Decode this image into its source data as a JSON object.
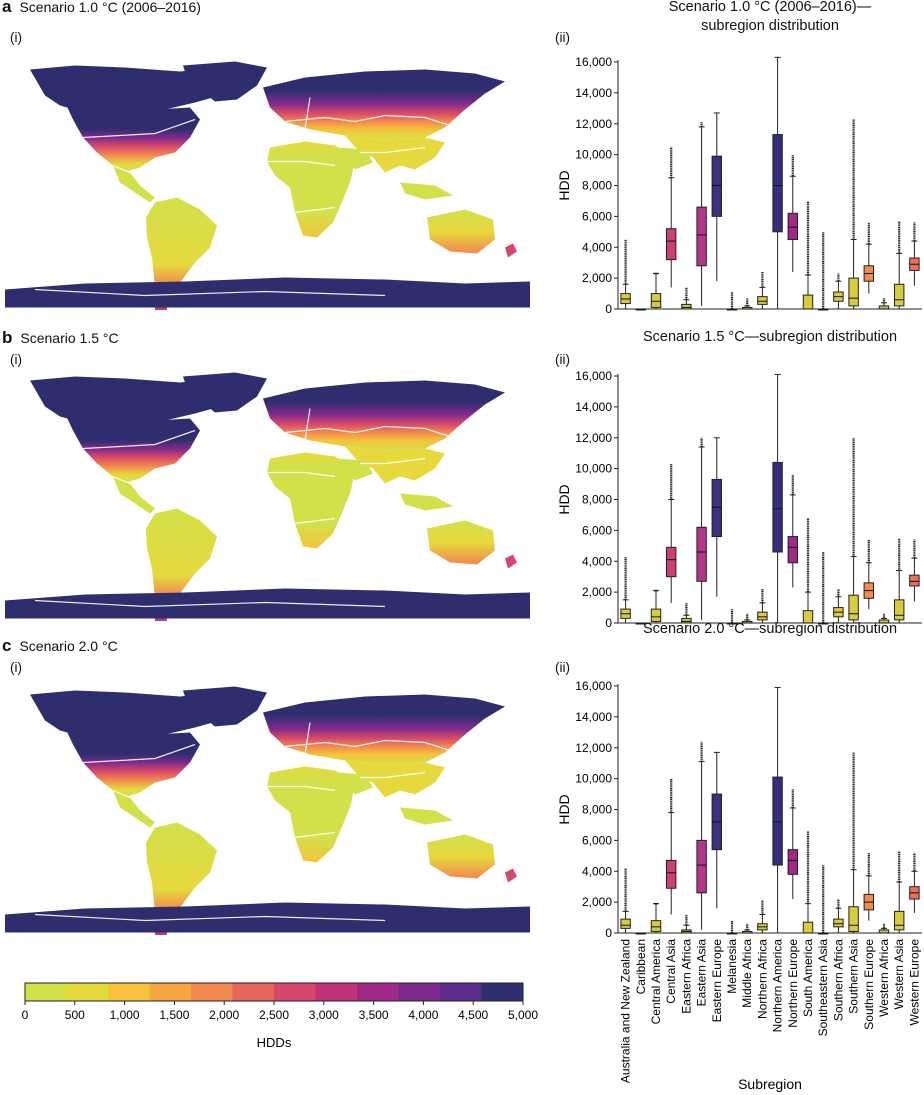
{
  "colorbar": {
    "label": "HDDs",
    "ticks": [
      "0",
      "500",
      "1,000",
      "1,500",
      "2,000",
      "2,500",
      "3,000",
      "3,500",
      "4,000",
      "4,500",
      "5,000"
    ],
    "colors": [
      "#d2e04a",
      "#e6d93e",
      "#f5c43a",
      "#f7a743",
      "#f2874f",
      "#e6665d",
      "#d6486b",
      "#bf3179",
      "#a02886",
      "#7c2a8c",
      "#5a2b8a",
      "#2e2e6e"
    ]
  },
  "panels": [
    {
      "letter": "a",
      "title": "Scenario 1.0 °C (2006–2016)",
      "map_label": "(i)",
      "chart_label": "(ii)",
      "chart_title_lines": [
        "Scenario 1.0 °C (2006–2016)—",
        "subregion distribution"
      ]
    },
    {
      "letter": "b",
      "title": "Scenario 1.5 °C",
      "map_label": "(i)",
      "chart_label": "(ii)",
      "chart_title_lines": [
        "Scenario 1.5 °C—subregion distribution"
      ]
    },
    {
      "letter": "c",
      "title": "Scenario 2.0 °C",
      "map_label": "(i)",
      "chart_label": "(ii)",
      "chart_title_lines": [
        "Scenario 2.0 °C—subregion distribution"
      ]
    }
  ],
  "chart_data": [
    {
      "type": "box",
      "title": "Scenario 1.0 °C (2006–2016)—subregion distribution",
      "xlabel": "Subregion",
      "ylabel": "HDD",
      "ylim": [
        0,
        16000
      ],
      "yticks": [
        "0",
        "2,000",
        "4,000",
        "6,000",
        "8,000",
        "10,000",
        "12,000",
        "14,000",
        "16,000"
      ],
      "categories": [
        "Australia and New Zealand",
        "Caribbean",
        "Central America",
        "Central Asia",
        "Eastern Africa",
        "Eastern Asia",
        "Eastern Europe",
        "Melanesia",
        "Middle Africa",
        "Northern Africa",
        "Northern America",
        "Northern Europe",
        "South America",
        "Southeastern Asia",
        "Southern Africa",
        "Southern Asia",
        "Southern Europe",
        "Western Africa",
        "Western Asia",
        "Western Europe"
      ],
      "boxes": [
        {
          "q1": 350,
          "median": 650,
          "q3": 1000,
          "wlo": 0,
          "whi": 1600,
          "outhi": 4500,
          "color": "#d8cb3e"
        },
        {
          "q1": 0,
          "median": 0,
          "q3": 0,
          "wlo": 0,
          "whi": 0,
          "outhi": null,
          "color": "#d8cb3e"
        },
        {
          "q1": 100,
          "median": 500,
          "q3": 1000,
          "wlo": 0,
          "whi": 2300,
          "outhi": 2300,
          "color": "#d8cb3e"
        },
        {
          "q1": 3200,
          "median": 4400,
          "q3": 5200,
          "wlo": 1400,
          "whi": 8500,
          "outhi": 10500,
          "color": "#cd3e74"
        },
        {
          "q1": 0,
          "median": 100,
          "q3": 300,
          "wlo": 0,
          "whi": 600,
          "outhi": 1400,
          "color": "#c9c340"
        },
        {
          "q1": 2800,
          "median": 4800,
          "q3": 6600,
          "wlo": 200,
          "whi": 11800,
          "outhi": 12100,
          "color": "#b43589"
        },
        {
          "q1": 6000,
          "median": 8000,
          "q3": 9900,
          "wlo": 1800,
          "whi": 12700,
          "outhi": null,
          "color": "#3a3180"
        },
        {
          "q1": 0,
          "median": 0,
          "q3": 0,
          "wlo": 0,
          "whi": 0,
          "outhi": 1100,
          "color": "#c9c340"
        },
        {
          "q1": 0,
          "median": 0,
          "q3": 100,
          "wlo": 0,
          "whi": 200,
          "outhi": 700,
          "color": "#c9c340"
        },
        {
          "q1": 300,
          "median": 500,
          "q3": 800,
          "wlo": 0,
          "whi": 1400,
          "outhi": 2400,
          "color": "#d8cb3e"
        },
        {
          "q1": 5000,
          "median": 8000,
          "q3": 11300,
          "wlo": 0,
          "whi": 16300,
          "outhi": null,
          "color": "#35307d"
        },
        {
          "q1": 4500,
          "median": 5300,
          "q3": 6200,
          "wlo": 2400,
          "whi": 8600,
          "outhi": 10000,
          "color": "#a02886"
        },
        {
          "q1": 0,
          "median": 0,
          "q3": 900,
          "wlo": 0,
          "whi": 2200,
          "outhi": 7000,
          "color": "#d8cb3e"
        },
        {
          "q1": 0,
          "median": 0,
          "q3": 0,
          "wlo": 0,
          "whi": 0,
          "outhi": 5000,
          "color": "#c9c340"
        },
        {
          "q1": 500,
          "median": 800,
          "q3": 1100,
          "wlo": 0,
          "whi": 1800,
          "outhi": 2300,
          "color": "#d8cb3e"
        },
        {
          "q1": 200,
          "median": 700,
          "q3": 2000,
          "wlo": 0,
          "whi": 4500,
          "outhi": 12300,
          "color": "#d8cb3e"
        },
        {
          "q1": 1800,
          "median": 2300,
          "q3": 2800,
          "wlo": 1000,
          "whi": 4200,
          "outhi": 5600,
          "color": "#f28a52"
        },
        {
          "q1": 0,
          "median": 0,
          "q3": 200,
          "wlo": 0,
          "whi": 400,
          "outhi": 700,
          "color": "#c9c340"
        },
        {
          "q1": 200,
          "median": 600,
          "q3": 1600,
          "wlo": 0,
          "whi": 3600,
          "outhi": 5700,
          "color": "#d8cb3e"
        },
        {
          "q1": 2500,
          "median": 2900,
          "q3": 3300,
          "wlo": 1500,
          "whi": 4400,
          "outhi": 5600,
          "color": "#ee6f5e"
        }
      ]
    },
    {
      "type": "box",
      "title": "Scenario 1.5 °C—subregion distribution",
      "xlabel": "Subregion",
      "ylabel": "HDD",
      "ylim": [
        0,
        16000
      ],
      "yticks": [
        "0",
        "2,000",
        "4,000",
        "6,000",
        "8,000",
        "10,000",
        "12,000",
        "14,000",
        "16,000"
      ],
      "categories": [
        "Australia and New Zealand",
        "Caribbean",
        "Central America",
        "Central Asia",
        "Eastern Africa",
        "Eastern Asia",
        "Eastern Europe",
        "Melanesia",
        "Middle Africa",
        "Northern Africa",
        "Northern America",
        "Northern Europe",
        "South America",
        "Southeastern Asia",
        "Southern Africa",
        "Southern Asia",
        "Southern Europe",
        "Western Africa",
        "Western Asia",
        "Western Europe"
      ],
      "boxes": [
        {
          "q1": 300,
          "median": 600,
          "q3": 900,
          "wlo": 0,
          "whi": 1500,
          "outhi": 4300,
          "color": "#d8cb3e"
        },
        {
          "q1": 0,
          "median": 0,
          "q3": 0,
          "wlo": 0,
          "whi": 0,
          "outhi": null,
          "color": "#d8cb3e"
        },
        {
          "q1": 100,
          "median": 400,
          "q3": 900,
          "wlo": 0,
          "whi": 2100,
          "outhi": 2100,
          "color": "#d8cb3e"
        },
        {
          "q1": 3000,
          "median": 4100,
          "q3": 4900,
          "wlo": 1300,
          "whi": 8000,
          "outhi": 10300,
          "color": "#cd3e74"
        },
        {
          "q1": 0,
          "median": 100,
          "q3": 300,
          "wlo": 0,
          "whi": 500,
          "outhi": 1300,
          "color": "#c9c340"
        },
        {
          "q1": 2700,
          "median": 4600,
          "q3": 6200,
          "wlo": 200,
          "whi": 11400,
          "outhi": 12000,
          "color": "#b43589"
        },
        {
          "q1": 5600,
          "median": 7500,
          "q3": 9300,
          "wlo": 1700,
          "whi": 12000,
          "outhi": null,
          "color": "#3a3180"
        },
        {
          "q1": 0,
          "median": 0,
          "q3": 0,
          "wlo": 0,
          "whi": 0,
          "outhi": 900,
          "color": "#c9c340"
        },
        {
          "q1": 0,
          "median": 0,
          "q3": 100,
          "wlo": 0,
          "whi": 200,
          "outhi": 600,
          "color": "#c9c340"
        },
        {
          "q1": 200,
          "median": 400,
          "q3": 700,
          "wlo": 0,
          "whi": 1300,
          "outhi": 2200,
          "color": "#d8cb3e"
        },
        {
          "q1": 4600,
          "median": 7400,
          "q3": 10400,
          "wlo": 0,
          "whi": 16100,
          "outhi": null,
          "color": "#35307d"
        },
        {
          "q1": 3900,
          "median": 4900,
          "q3": 5600,
          "wlo": 2300,
          "whi": 8300,
          "outhi": 9600,
          "color": "#a02886"
        },
        {
          "q1": 0,
          "median": 0,
          "q3": 800,
          "wlo": 0,
          "whi": 2000,
          "outhi": 6800,
          "color": "#d8cb3e"
        },
        {
          "q1": 0,
          "median": 0,
          "q3": 0,
          "wlo": 0,
          "whi": 0,
          "outhi": 4600,
          "color": "#c9c340"
        },
        {
          "q1": 400,
          "median": 700,
          "q3": 1000,
          "wlo": 0,
          "whi": 1700,
          "outhi": 2200,
          "color": "#d8cb3e"
        },
        {
          "q1": 200,
          "median": 600,
          "q3": 1800,
          "wlo": 0,
          "whi": 4300,
          "outhi": 12000,
          "color": "#d8cb3e"
        },
        {
          "q1": 1600,
          "median": 2100,
          "q3": 2600,
          "wlo": 900,
          "whi": 3900,
          "outhi": 5400,
          "color": "#f28a52"
        },
        {
          "q1": 0,
          "median": 0,
          "q3": 200,
          "wlo": 0,
          "whi": 300,
          "outhi": 600,
          "color": "#c9c340"
        },
        {
          "q1": 200,
          "median": 500,
          "q3": 1500,
          "wlo": 0,
          "whi": 3400,
          "outhi": 5500,
          "color": "#d8cb3e"
        },
        {
          "q1": 2400,
          "median": 2700,
          "q3": 3100,
          "wlo": 1400,
          "whi": 4200,
          "outhi": 5400,
          "color": "#ee6f5e"
        }
      ]
    },
    {
      "type": "box",
      "title": "Scenario 2.0 °C—subregion distribution",
      "xlabel": "Subregion",
      "ylabel": "HDD",
      "ylim": [
        0,
        16000
      ],
      "yticks": [
        "0",
        "2,000",
        "4,000",
        "6,000",
        "8,000",
        "10,000",
        "12,000",
        "14,000",
        "16,000"
      ],
      "categories": [
        "Australia and New Zealand",
        "Caribbean",
        "Central America",
        "Central Asia",
        "Eastern Africa",
        "Eastern Asia",
        "Eastern Europe",
        "Melanesia",
        "Middle Africa",
        "Northern Africa",
        "Northern America",
        "Northern Europe",
        "South America",
        "Southeastern Asia",
        "Southern Africa",
        "Southern Asia",
        "Southern Europe",
        "Western Africa",
        "Western Asia",
        "Western Europe"
      ],
      "boxes": [
        {
          "q1": 300,
          "median": 500,
          "q3": 900,
          "wlo": 0,
          "whi": 1400,
          "outhi": 4200,
          "color": "#d8cb3e"
        },
        {
          "q1": 0,
          "median": 0,
          "q3": 0,
          "wlo": 0,
          "whi": 0,
          "outhi": null,
          "color": "#d8cb3e"
        },
        {
          "q1": 100,
          "median": 400,
          "q3": 800,
          "wlo": 0,
          "whi": 1900,
          "outhi": 1900,
          "color": "#d8cb3e"
        },
        {
          "q1": 2900,
          "median": 3900,
          "q3": 4700,
          "wlo": 1200,
          "whi": 7800,
          "outhi": 10000,
          "color": "#cd3e74"
        },
        {
          "q1": 0,
          "median": 100,
          "q3": 200,
          "wlo": 0,
          "whi": 500,
          "outhi": 1200,
          "color": "#c9c340"
        },
        {
          "q1": 2600,
          "median": 4400,
          "q3": 6000,
          "wlo": 200,
          "whi": 11100,
          "outhi": 12400,
          "color": "#b43589"
        },
        {
          "q1": 5400,
          "median": 7200,
          "q3": 9000,
          "wlo": 1600,
          "whi": 11700,
          "outhi": null,
          "color": "#3a3180"
        },
        {
          "q1": 0,
          "median": 0,
          "q3": 0,
          "wlo": 0,
          "whi": 0,
          "outhi": 800,
          "color": "#c9c340"
        },
        {
          "q1": 0,
          "median": 0,
          "q3": 100,
          "wlo": 0,
          "whi": 200,
          "outhi": 600,
          "color": "#c9c340"
        },
        {
          "q1": 200,
          "median": 400,
          "q3": 600,
          "wlo": 0,
          "whi": 1200,
          "outhi": 2100,
          "color": "#d8cb3e"
        },
        {
          "q1": 4400,
          "median": 7200,
          "q3": 10100,
          "wlo": 0,
          "whi": 15900,
          "outhi": null,
          "color": "#35307d"
        },
        {
          "q1": 3800,
          "median": 4700,
          "q3": 5400,
          "wlo": 2200,
          "whi": 8100,
          "outhi": 9300,
          "color": "#a02886"
        },
        {
          "q1": 0,
          "median": 0,
          "q3": 700,
          "wlo": 0,
          "whi": 1900,
          "outhi": 6600,
          "color": "#d8cb3e"
        },
        {
          "q1": 0,
          "median": 0,
          "q3": 0,
          "wlo": 0,
          "whi": 0,
          "outhi": 4400,
          "color": "#c9c340"
        },
        {
          "q1": 400,
          "median": 600,
          "q3": 900,
          "wlo": 0,
          "whi": 1600,
          "outhi": 2200,
          "color": "#d8cb3e"
        },
        {
          "q1": 100,
          "median": 500,
          "q3": 1700,
          "wlo": 0,
          "whi": 4100,
          "outhi": 11700,
          "color": "#d8cb3e"
        },
        {
          "q1": 1500,
          "median": 2000,
          "q3": 2500,
          "wlo": 800,
          "whi": 3700,
          "outhi": 5200,
          "color": "#f28a52"
        },
        {
          "q1": 0,
          "median": 0,
          "q3": 200,
          "wlo": 0,
          "whi": 300,
          "outhi": 600,
          "color": "#c9c340"
        },
        {
          "q1": 200,
          "median": 500,
          "q3": 1400,
          "wlo": 0,
          "whi": 3300,
          "outhi": 5300,
          "color": "#d8cb3e"
        },
        {
          "q1": 2200,
          "median": 2600,
          "q3": 3000,
          "wlo": 1300,
          "whi": 4000,
          "outhi": 5200,
          "color": "#ee6f5e"
        }
      ]
    }
  ]
}
